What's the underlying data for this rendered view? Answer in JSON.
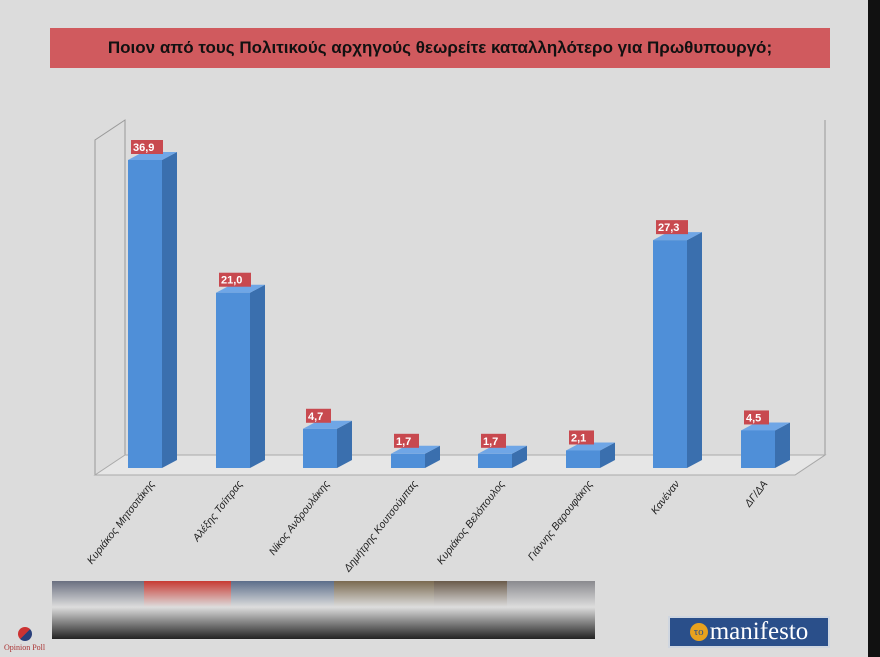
{
  "title": "Ποιον από τους Πολιτικούς αρχηγούς θεωρείτε καταλληλότερο για Πρωθυπουργό;",
  "chart_data": {
    "type": "bar",
    "style": "3d-column",
    "title": "Ποιον από τους Πολιτικούς αρχηγούς θεωρείτε καταλληλότερο για Πρωθυπουργό;",
    "categories": [
      "Κυριάκος Μητσοτάκης",
      "Αλέξης Τσίπρας",
      "Νίκος Ανδρουλάκης",
      "Δημήτρης Κουτσούμπας",
      "Κυριάκος Βελόπουλος",
      "Γιάννης Βαρουφάκης",
      "Κανέναν",
      "ΔΓ/ΔΑ"
    ],
    "values": [
      36.9,
      21.0,
      4.7,
      1.7,
      1.7,
      2.1,
      27.3,
      4.5
    ],
    "data_labels": [
      "36,9",
      "21,0",
      "4,7",
      "1,7",
      "1,7",
      "2,1",
      "27,3",
      "4,5"
    ],
    "ylim": [
      0,
      37
    ],
    "grid": false,
    "colors": {
      "bar": "#4f8fd8",
      "label_bg": "#c8494f",
      "title_bg": "#d05a5e"
    }
  },
  "footer": {
    "logo_text": "manifesto",
    "logo_prefix": "το",
    "pollster": "Opinion Poll"
  },
  "photo_colors": [
    "#6a6f80",
    "#c73a33",
    "#5b6d8a",
    "#7a6a50",
    "#6a5a4a",
    "#8a8a8f"
  ]
}
